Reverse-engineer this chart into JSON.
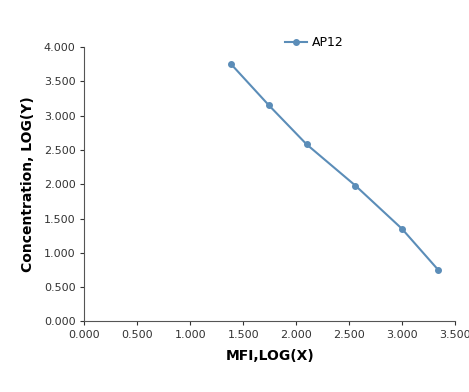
{
  "x": [
    1.38,
    1.74,
    2.1,
    2.56,
    3.0,
    3.34
  ],
  "y": [
    3.76,
    3.155,
    2.58,
    1.98,
    1.35,
    0.755
  ],
  "line_color": "#5b8db8",
  "marker_style": "o",
  "marker_size": 4,
  "line_width": 1.5,
  "xlabel": "MFI,LOG(X)",
  "ylabel": "Concentration, LOG(Y)",
  "legend_label": "AP12",
  "xlim": [
    0.0,
    3.5
  ],
  "ylim": [
    0.0,
    4.0
  ],
  "xticks": [
    0.0,
    0.5,
    1.0,
    1.5,
    2.0,
    2.5,
    3.0,
    3.5
  ],
  "yticks": [
    0.0,
    0.5,
    1.0,
    1.5,
    2.0,
    2.5,
    3.0,
    3.5,
    4.0
  ],
  "background_color": "#ffffff",
  "axis_label_fontsize": 10,
  "tick_fontsize": 8,
  "legend_fontsize": 9,
  "spine_color": "#555555",
  "tick_color": "#333333"
}
